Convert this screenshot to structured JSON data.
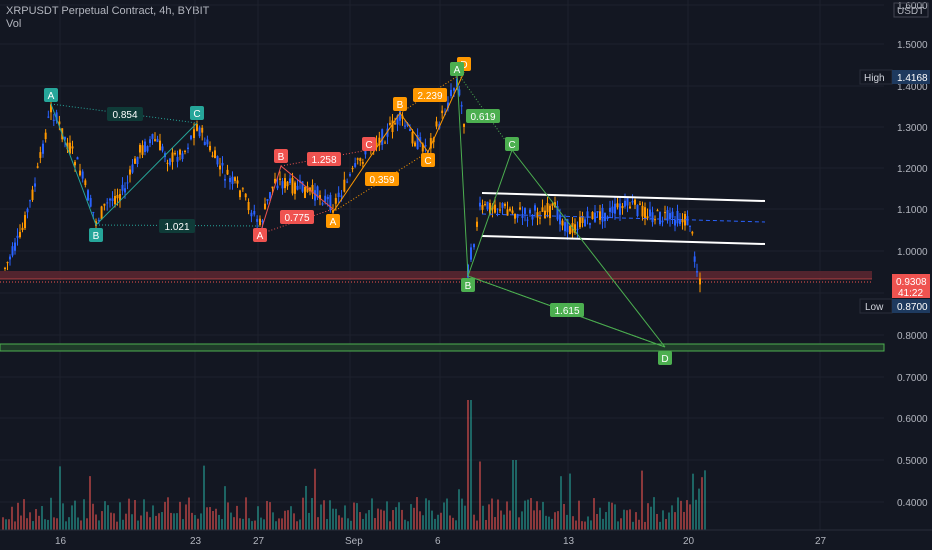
{
  "header": {
    "title": "XRPUSDT Perpetual Contract, 4h, BYBIT",
    "vol_label": "Vol"
  },
  "currency": "USDT",
  "price_axis": {
    "ticks": [
      "1.6000",
      "1.5000",
      "1.4000",
      "1.3000",
      "1.2000",
      "1.1000",
      "1.0000",
      "0.9000",
      "0.8000",
      "0.7000",
      "0.6000",
      "0.5000",
      "0.4000"
    ],
    "high_label": "High",
    "high_value": "1.4168",
    "current_price": "0.9308",
    "countdown": "41:22",
    "low_label": "Low",
    "low_value": "0.8700"
  },
  "time_axis": {
    "labels": [
      "16",
      "23",
      "27",
      "Sep",
      "6",
      "13",
      "20",
      "27"
    ]
  },
  "colors": {
    "bg": "#131722",
    "up": "#26a69a",
    "down": "#ef5350",
    "candle_blue": "#2962ff",
    "candle_orange": "#ff9800",
    "green": "#4caf50",
    "pattern_teal": "#26a69a",
    "pattern_red": "#ef5350",
    "pattern_orange": "#ff9800",
    "pattern_green": "#4caf50"
  },
  "patterns": {
    "teal": {
      "points": [
        "A",
        "B",
        "C"
      ],
      "ratios": [
        "0.854",
        "1.021"
      ]
    },
    "red": {
      "points": [
        "A",
        "B",
        "C"
      ],
      "ratios": [
        "1.258",
        "0.775"
      ]
    },
    "orange": {
      "points": [
        "A",
        "B",
        "C",
        "D"
      ],
      "ratios": [
        "2.239",
        "0.359"
      ]
    },
    "green": {
      "points": [
        "A",
        "B",
        "C",
        "D"
      ],
      "ratios": [
        "0.619",
        "1.615"
      ]
    }
  }
}
